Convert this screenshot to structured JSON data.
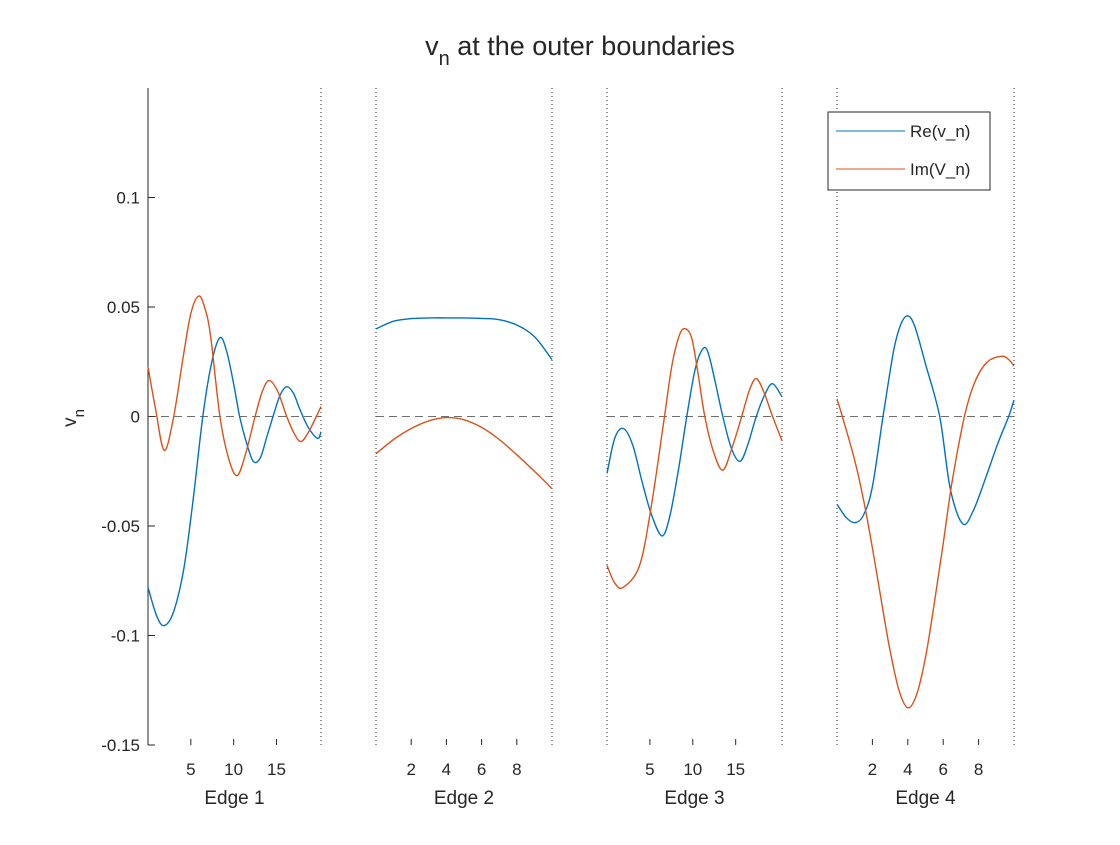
{
  "chart_data": {
    "type": "line",
    "title": "v_n at the outer boundaries",
    "title_main": "v",
    "title_sub": "n",
    "title_rest": " at the outer boundaries",
    "ylabel": "v_n",
    "ylabel_main": "v",
    "ylabel_sub": "n",
    "ylim": [
      -0.15,
      0.15
    ],
    "yticks": [
      -0.15,
      -0.1,
      -0.05,
      0,
      0.05,
      0.1
    ],
    "ytick_labels": [
      "-0.15",
      "-0.1",
      "-0.05",
      "0",
      "0.05",
      "0.1"
    ],
    "grid": false,
    "legend_placement": "top-right",
    "legend": [
      {
        "label": "Re(v_n)",
        "main": "Re(v",
        "sub": "n",
        "close": ")",
        "color": "#0072BD"
      },
      {
        "label": "Im(V_n)",
        "main": "Im(V",
        "sub": "n",
        "close": ")",
        "color": "#D95319"
      }
    ],
    "colors": {
      "re": "#0072BD",
      "im": "#D95319",
      "axis": "#262626",
      "zero_line": "#404040"
    },
    "panels": [
      {
        "xlabel": "Edge 1",
        "xlim": [
          0,
          20.2
        ],
        "xticks": [
          5,
          10,
          15
        ],
        "xtick_labels": [
          "5",
          "10",
          "15"
        ],
        "re": {
          "x": [
            0,
            1,
            1.9,
            3,
            4.2,
            5.3,
            6.4,
            7.4,
            8.4,
            9.2,
            10,
            10.7,
            11.5,
            12.3,
            13.1,
            13.9,
            14.6,
            15.4,
            16.2,
            17,
            17.7,
            18.7,
            19.8,
            20.2
          ],
          "y": [
            -0.078,
            -0.091,
            -0.0955,
            -0.089,
            -0.069,
            -0.037,
            0,
            0.024,
            0.036,
            0.0295,
            0.015,
            0,
            -0.012,
            -0.0205,
            -0.019,
            -0.009,
            0,
            0.0095,
            0.0136,
            0.0105,
            0.0036,
            -0.005,
            -0.01,
            -0.007
          ]
        },
        "im": {
          "x": [
            0,
            0.9,
            1.9,
            3,
            4.1,
            5,
            5.9,
            6.6,
            7.3,
            8.4,
            9.4,
            10.4,
            11.4,
            12.5,
            13.4,
            14.2,
            15.2,
            16.2,
            17.1,
            17.9,
            18.9,
            20.2
          ],
          "y": [
            0.0227,
            0.003,
            -0.0155,
            0,
            0.027,
            0.047,
            0.055,
            0.05,
            0.037,
            0,
            -0.019,
            -0.027,
            -0.017,
            0,
            0.012,
            0.0164,
            0.011,
            0,
            -0.008,
            -0.0114,
            -0.006,
            0.0045
          ]
        }
      },
      {
        "xlabel": "Edge 2",
        "xlim": [
          0,
          10
        ],
        "xticks": [
          2,
          4,
          6,
          8
        ],
        "xtick_labels": [
          "2",
          "4",
          "6",
          "8"
        ],
        "re": {
          "x": [
            0,
            1,
            2,
            3,
            4,
            5,
            6,
            7,
            8,
            9,
            10
          ],
          "y": [
            0.04,
            0.0435,
            0.0447,
            0.045,
            0.045,
            0.045,
            0.0448,
            0.0442,
            0.0418,
            0.0365,
            0.026
          ]
        },
        "im": {
          "x": [
            0,
            1,
            2,
            3,
            4,
            5,
            6,
            7,
            8,
            9,
            10
          ],
          "y": [
            -0.017,
            -0.0105,
            -0.0055,
            -0.002,
            -0.0005,
            -0.0015,
            -0.005,
            -0.0105,
            -0.0175,
            -0.025,
            -0.033
          ]
        }
      },
      {
        "xlabel": "Edge 3",
        "xlim": [
          0,
          20.4
        ],
        "xticks": [
          5,
          10,
          15
        ],
        "xtick_labels": [
          "5",
          "10",
          "15"
        ],
        "re": {
          "x": [
            0,
            0.9,
            1.9,
            3,
            4.1,
            5.2,
            6.4,
            7.3,
            8.3,
            9.3,
            10.3,
            11.2,
            11.8,
            12.6,
            13.5,
            14.5,
            15.5,
            16.4,
            17.4,
            18.4,
            19.3,
            20.4
          ],
          "y": [
            -0.026,
            -0.01,
            -0.0055,
            -0.013,
            -0.03,
            -0.045,
            -0.0545,
            -0.046,
            -0.025,
            0,
            0.022,
            0.031,
            0.029,
            0.016,
            0,
            -0.0145,
            -0.0205,
            -0.013,
            0,
            0.01,
            0.015,
            0.009
          ]
        },
        "im": {
          "x": [
            0,
            0.9,
            1.9,
            3.8,
            5.2,
            6.7,
            7.6,
            8.5,
            9.2,
            9.9,
            10.6,
            11.4,
            12.4,
            13.5,
            14.6,
            15.7,
            16.6,
            17.4,
            18.3,
            19.3,
            20.4
          ],
          "y": [
            -0.068,
            -0.076,
            -0.078,
            -0.068,
            -0.04,
            0,
            0.024,
            0.0377,
            0.04,
            0.0355,
            0.02,
            0,
            -0.016,
            -0.0245,
            -0.014,
            0,
            0.012,
            0.0173,
            0.011,
            0,
            -0.011
          ]
        }
      },
      {
        "xlabel": "Edge 4",
        "xlim": [
          0,
          10
        ],
        "xticks": [
          2,
          4,
          6,
          8
        ],
        "xtick_labels": [
          "2",
          "4",
          "6",
          "8"
        ],
        "re": {
          "x": [
            0,
            0.5,
            1,
            1.5,
            2,
            2.6,
            3.2,
            3.6,
            4,
            4.4,
            5,
            5.8,
            6.4,
            7.1,
            7.7,
            8.4,
            9.1,
            9.7,
            10
          ],
          "y": [
            -0.04,
            -0.046,
            -0.0485,
            -0.045,
            -0.032,
            0,
            0.03,
            0.042,
            0.046,
            0.041,
            0.024,
            0,
            -0.033,
            -0.049,
            -0.043,
            -0.028,
            -0.012,
            0,
            0.0075
          ]
        },
        "im": {
          "x": [
            0,
            0.3,
            1,
            1.5,
            2,
            2.5,
            3,
            3.5,
            4,
            4.5,
            5,
            5.5,
            6,
            6.5,
            7.2,
            7.8,
            8.5,
            9.3,
            9.7,
            10
          ],
          "y": [
            0.008,
            0,
            -0.02,
            -0.038,
            -0.06,
            -0.084,
            -0.107,
            -0.125,
            -0.133,
            -0.127,
            -0.11,
            -0.085,
            -0.058,
            -0.03,
            0,
            0.016,
            0.025,
            0.0275,
            0.026,
            0.023
          ]
        }
      }
    ]
  }
}
